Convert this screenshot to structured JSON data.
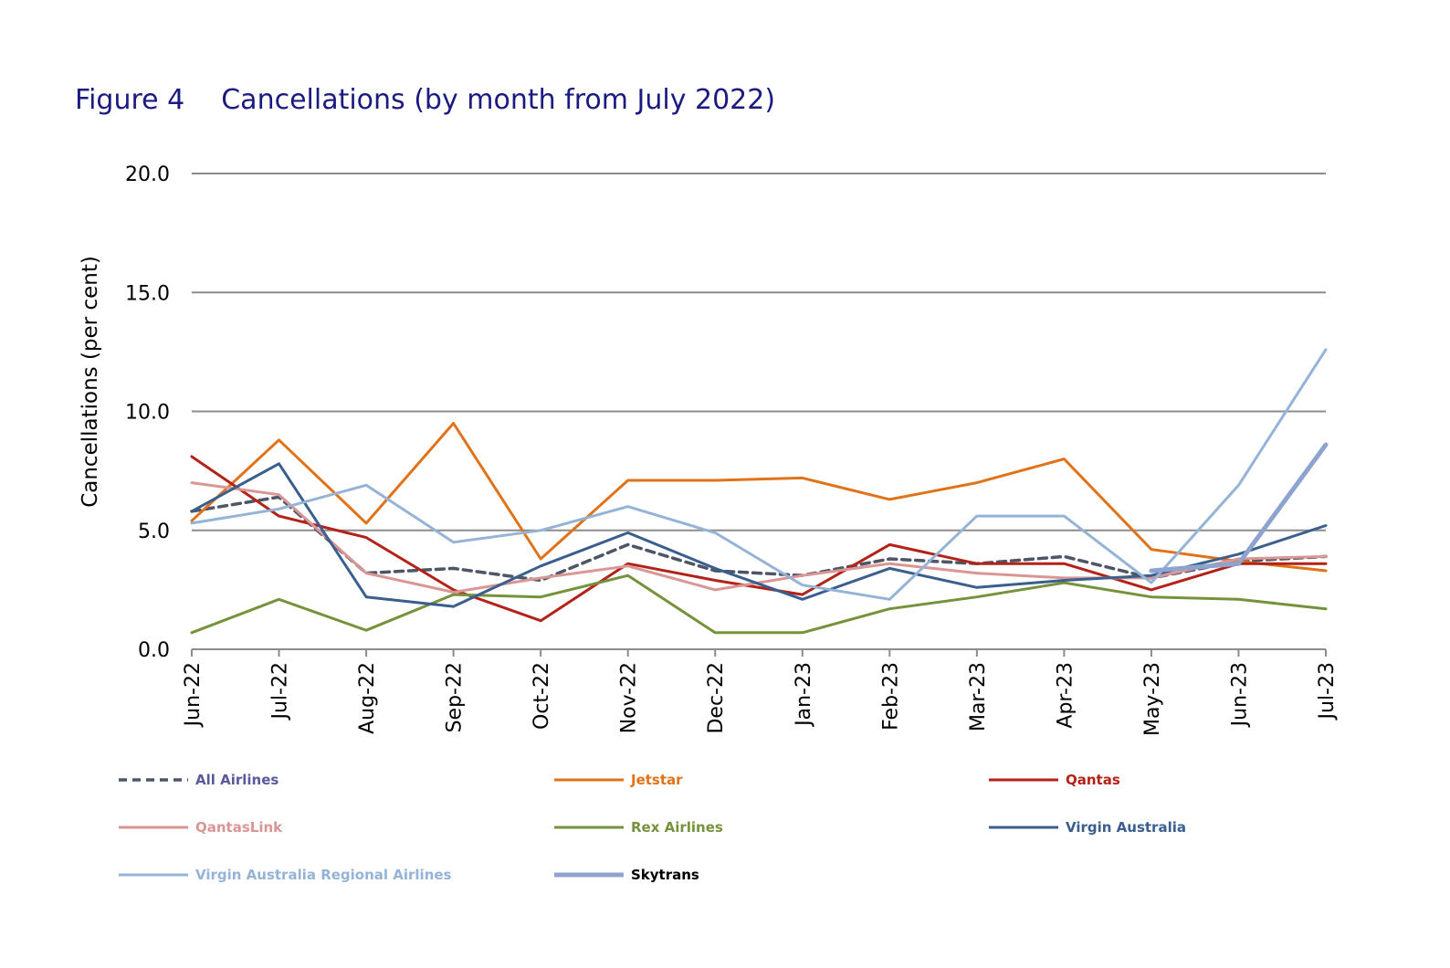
{
  "chart_data": {
    "type": "line",
    "title_number": "Figure 4",
    "title": "Cancellations (by month from July 2022)",
    "ylabel": "Cancellations (per cent)",
    "xlabel": "",
    "ylim": [
      0,
      20
    ],
    "yticks": [
      "0.0",
      "5.0",
      "10.0",
      "15.0",
      "20.0"
    ],
    "ytick_values": [
      0,
      5,
      10,
      15,
      20
    ],
    "grid": true,
    "legend_position": "bottom",
    "categories": [
      "Jun-22",
      "Jul-22",
      "Aug-22",
      "Sep-22",
      "Oct-22",
      "Nov-22",
      "Dec-22",
      "Jan-23",
      "Feb-23",
      "Mar-23",
      "Apr-23",
      "May-23",
      "Jun-23",
      "Jul-23"
    ],
    "series": [
      {
        "name": "All Airlines",
        "color": "#4d5566",
        "label_color": "#5a5a9a",
        "style": "dashed",
        "width": 3.5,
        "values": [
          5.8,
          6.4,
          3.2,
          3.4,
          2.9,
          4.4,
          3.3,
          3.1,
          3.8,
          3.6,
          3.9,
          3.0,
          3.7,
          3.9
        ]
      },
      {
        "name": "Jetstar",
        "color": "#e07319",
        "label_color": "#e07319",
        "style": "solid",
        "width": 3,
        "values": [
          5.4,
          8.8,
          5.3,
          9.5,
          3.8,
          7.1,
          7.1,
          7.2,
          6.3,
          7.0,
          8.0,
          4.2,
          3.7,
          3.3
        ]
      },
      {
        "name": "Qantas",
        "color": "#b32218",
        "label_color": "#b32218",
        "style": "solid",
        "width": 3,
        "values": [
          8.1,
          5.6,
          4.7,
          2.5,
          1.2,
          3.6,
          2.9,
          2.3,
          4.4,
          3.6,
          3.6,
          2.5,
          3.6,
          3.6
        ]
      },
      {
        "name": "QantasLink",
        "color": "#d99694",
        "label_color": "#d99694",
        "style": "solid",
        "width": 3,
        "values": [
          7.0,
          6.5,
          3.2,
          2.4,
          3.0,
          3.5,
          2.5,
          3.1,
          3.6,
          3.2,
          3.0,
          3.0,
          3.8,
          3.9
        ]
      },
      {
        "name": "Rex Airlines",
        "color": "#76923c",
        "label_color": "#76923c",
        "style": "solid",
        "width": 3,
        "values": [
          0.7,
          2.1,
          0.8,
          2.3,
          2.2,
          3.1,
          0.7,
          0.7,
          1.7,
          2.2,
          2.8,
          2.2,
          2.1,
          1.7
        ]
      },
      {
        "name": "Virgin Australia",
        "color": "#3a5f8f",
        "label_color": "#3a5f8f",
        "style": "solid",
        "width": 3,
        "values": [
          5.8,
          7.8,
          2.2,
          1.8,
          3.5,
          4.9,
          3.4,
          2.1,
          3.4,
          2.6,
          2.9,
          3.1,
          4.0,
          5.2
        ]
      },
      {
        "name": "Virgin Australia Regional Airlines",
        "color": "#95b3d7",
        "label_color": "#95b3d7",
        "style": "solid",
        "width": 3,
        "values": [
          5.3,
          5.9,
          6.9,
          4.5,
          5.0,
          6.0,
          4.9,
          2.7,
          2.1,
          5.6,
          5.6,
          2.8,
          6.9,
          12.6
        ]
      },
      {
        "name": "Skytrans",
        "color": "#8ea4cf",
        "label_color": "#000000",
        "style": "solid",
        "width": 5,
        "values": [
          null,
          null,
          null,
          null,
          null,
          null,
          null,
          null,
          null,
          null,
          null,
          3.3,
          3.6,
          8.6
        ]
      }
    ]
  }
}
